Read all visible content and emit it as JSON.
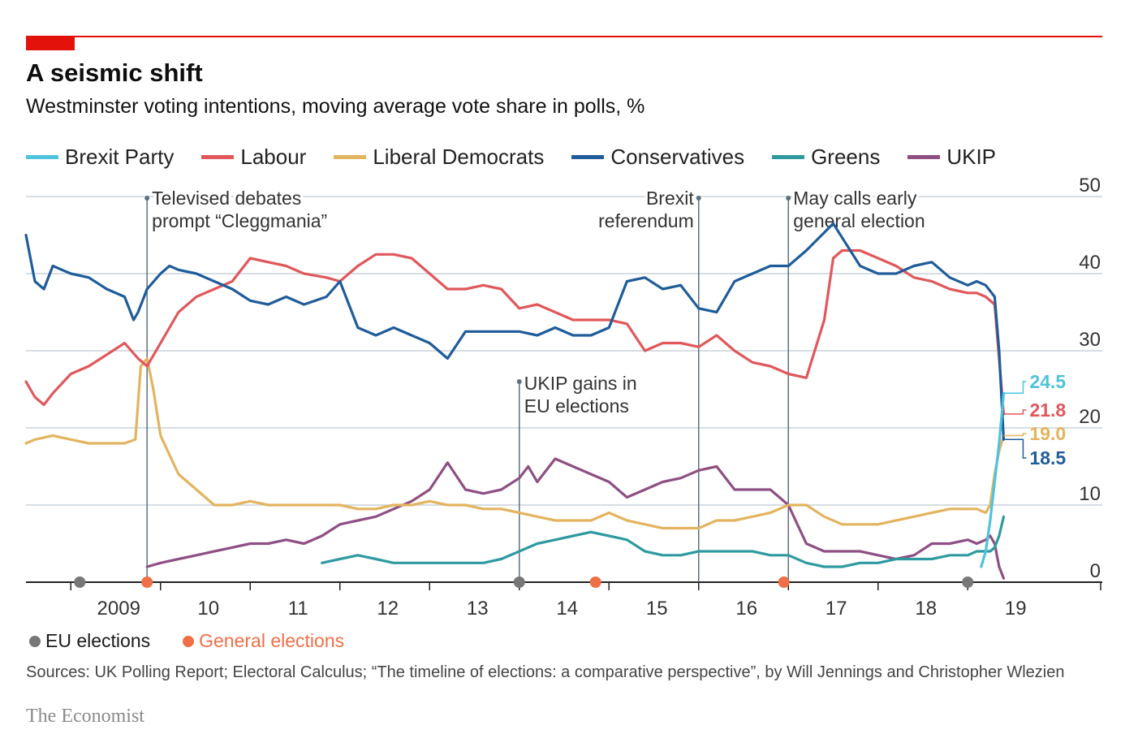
{
  "title": "A seismic shift",
  "subtitle": "Westminster voting intentions, moving average vote share in polls, %",
  "legend": [
    {
      "name": "Brexit Party",
      "color": "#4dc3dc"
    },
    {
      "name": "Labour",
      "color": "#e0585b"
    },
    {
      "name": "Liberal Democrats",
      "color": "#e3b45f"
    },
    {
      "name": "Conservatives",
      "color": "#1f5c99"
    },
    {
      "name": "Greens",
      "color": "#2e9aa0"
    },
    {
      "name": "UKIP",
      "color": "#8e4f82"
    }
  ],
  "markers": {
    "eu_label": "EU elections",
    "eu_color": "#777777",
    "ge_label": "General elections",
    "ge_color": "#ef6f47"
  },
  "sources": "Sources: UK Polling Report; Electoral Calculus; “The timeline of elections: a comparative perspective”, by Will Jennings and Christopher Wlezien",
  "brand": "The Economist",
  "chart_data": {
    "type": "line",
    "x_ticks": [
      2009,
      2010,
      2011,
      2012,
      2013,
      2014,
      2015,
      2016,
      2017,
      2018,
      2019
    ],
    "x_tick_labels": [
      "2009",
      "10",
      "11",
      "12",
      "13",
      "14",
      "15",
      "16",
      "17",
      "18",
      "19"
    ],
    "xlim": [
      2008.5,
      2020.5
    ],
    "ylim": [
      0,
      50
    ],
    "y_ticks": [
      0,
      10,
      20,
      30,
      40,
      50
    ],
    "grid": true,
    "series": [
      {
        "name": "Conservatives",
        "color": "#1f5c99",
        "x": [
          2008.5,
          2008.55,
          2008.6,
          2008.7,
          2008.8,
          2008.9,
          2009.0,
          2009.2,
          2009.4,
          2009.6,
          2009.7,
          2009.75,
          2009.85,
          2010.0,
          2010.1,
          2010.2,
          2010.4,
          2010.6,
          2010.8,
          2011.0,
          2011.2,
          2011.4,
          2011.6,
          2011.85,
          2012.0,
          2012.2,
          2012.4,
          2012.6,
          2012.8,
          2013.0,
          2013.2,
          2013.4,
          2013.6,
          2013.8,
          2014.0,
          2014.2,
          2014.4,
          2014.6,
          2014.8,
          2015.0,
          2015.2,
          2015.4,
          2015.6,
          2015.8,
          2016.0,
          2016.2,
          2016.4,
          2016.6,
          2016.8,
          2017.0,
          2017.2,
          2017.5,
          2017.8,
          2018.0,
          2018.2,
          2018.4,
          2018.6,
          2018.8,
          2019.0,
          2019.1,
          2019.2,
          2019.3,
          2019.35,
          2019.4
        ],
        "y": [
          45,
          42,
          39,
          38,
          41,
          40.5,
          40,
          39.5,
          38,
          37,
          34,
          35,
          38,
          40,
          41,
          40.5,
          40,
          39,
          38,
          36.5,
          36,
          37,
          36,
          37,
          39,
          33,
          32,
          33,
          32,
          31,
          29,
          32.5,
          32.5,
          32.5,
          32.5,
          32,
          33,
          32,
          32,
          33,
          39,
          39.5,
          38,
          38.5,
          35.5,
          35,
          39,
          40,
          41,
          41,
          43,
          46.5,
          41,
          40,
          40,
          41,
          41.5,
          39.5,
          38.5,
          39,
          38.5,
          37,
          30,
          18.5
        ]
      },
      {
        "name": "Labour",
        "color": "#e0585b",
        "x": [
          2008.5,
          2008.6,
          2008.7,
          2008.8,
          2009.0,
          2009.2,
          2009.4,
          2009.6,
          2009.75,
          2009.85,
          2010.0,
          2010.2,
          2010.4,
          2010.6,
          2010.8,
          2011.0,
          2011.2,
          2011.4,
          2011.6,
          2011.85,
          2012.0,
          2012.2,
          2012.4,
          2012.6,
          2012.8,
          2013.0,
          2013.2,
          2013.4,
          2013.6,
          2013.8,
          2014.0,
          2014.2,
          2014.4,
          2014.6,
          2014.8,
          2015.0,
          2015.2,
          2015.4,
          2015.6,
          2015.8,
          2016.0,
          2016.2,
          2016.4,
          2016.6,
          2016.8,
          2017.0,
          2017.2,
          2017.4,
          2017.5,
          2017.6,
          2017.8,
          2018.0,
          2018.2,
          2018.4,
          2018.6,
          2018.8,
          2019.0,
          2019.1,
          2019.2,
          2019.3,
          2019.35,
          2019.4
        ],
        "y": [
          26,
          24,
          23,
          24.5,
          27,
          28,
          29.5,
          31,
          29,
          28,
          31,
          35,
          37,
          38,
          39,
          42,
          41.5,
          41,
          40,
          39.5,
          39,
          41,
          42.5,
          42.5,
          42,
          40,
          38,
          38,
          38.5,
          38,
          35.5,
          36,
          35,
          34,
          34,
          34,
          33.5,
          30,
          31,
          31,
          30.5,
          32,
          30,
          28.5,
          28,
          27,
          26.5,
          34,
          42,
          43,
          43,
          42,
          41,
          39.5,
          39,
          38,
          37.5,
          37.5,
          37,
          36,
          29,
          21.8
        ]
      },
      {
        "name": "Liberal Democrats",
        "color": "#e3b45f",
        "x": [
          2008.5,
          2008.6,
          2008.8,
          2009.0,
          2009.2,
          2009.4,
          2009.6,
          2009.72,
          2009.78,
          2009.85,
          2009.92,
          2010.0,
          2010.2,
          2010.4,
          2010.5,
          2010.6,
          2010.8,
          2011.0,
          2011.2,
          2011.5,
          2011.8,
          2012.0,
          2012.2,
          2012.4,
          2012.6,
          2012.8,
          2013.0,
          2013.2,
          2013.4,
          2013.6,
          2013.8,
          2014.0,
          2014.2,
          2014.4,
          2014.6,
          2014.8,
          2015.0,
          2015.2,
          2015.4,
          2015.6,
          2015.8,
          2016.0,
          2016.2,
          2016.4,
          2016.6,
          2016.8,
          2017.0,
          2017.2,
          2017.4,
          2017.6,
          2017.8,
          2018.0,
          2018.2,
          2018.4,
          2018.6,
          2018.8,
          2019.0,
          2019.1,
          2019.2,
          2019.25,
          2019.3,
          2019.35,
          2019.4
        ],
        "y": [
          18,
          18.5,
          19,
          18.5,
          18,
          18,
          18,
          18.5,
          28,
          29,
          25,
          19,
          14,
          12,
          11,
          10,
          10,
          10.5,
          10,
          10,
          10,
          10,
          9.5,
          9.5,
          10,
          10,
          10.5,
          10,
          10,
          9.5,
          9.5,
          9,
          8.5,
          8,
          8,
          8,
          9,
          8,
          7.5,
          7,
          7,
          7,
          8,
          8,
          8.5,
          9,
          10,
          10,
          8.5,
          7.5,
          7.5,
          7.5,
          8,
          8.5,
          9,
          9.5,
          9.5,
          9.5,
          9,
          10,
          14,
          17,
          19.0
        ]
      },
      {
        "name": "Greens",
        "color": "#2e9aa0",
        "x": [
          2011.8,
          2012.0,
          2012.2,
          2012.4,
          2012.6,
          2012.8,
          2013.0,
          2013.2,
          2013.4,
          2013.6,
          2013.8,
          2014.0,
          2014.2,
          2014.4,
          2014.6,
          2014.8,
          2015.0,
          2015.2,
          2015.4,
          2015.6,
          2015.8,
          2016.0,
          2016.2,
          2016.4,
          2016.6,
          2016.8,
          2017.0,
          2017.2,
          2017.4,
          2017.6,
          2017.8,
          2018.0,
          2018.2,
          2018.4,
          2018.6,
          2018.8,
          2019.0,
          2019.1,
          2019.2,
          2019.25,
          2019.3,
          2019.35,
          2019.4
        ],
        "y": [
          2.5,
          3,
          3.5,
          3,
          2.5,
          2.5,
          2.5,
          2.5,
          2.5,
          2.5,
          3,
          4,
          5,
          5.5,
          6,
          6.5,
          6,
          5.5,
          4,
          3.5,
          3.5,
          4,
          4,
          4,
          4,
          3.5,
          3.5,
          2.5,
          2,
          2,
          2.5,
          2.5,
          3,
          3,
          3,
          3.5,
          3.5,
          4,
          4,
          4,
          4.5,
          6,
          8.5
        ]
      },
      {
        "name": "UKIP",
        "color": "#8e4f82",
        "x": [
          2009.85,
          2010.0,
          2010.2,
          2010.4,
          2010.6,
          2010.8,
          2011.0,
          2011.2,
          2011.4,
          2011.6,
          2011.8,
          2012.0,
          2012.2,
          2012.4,
          2012.6,
          2012.8,
          2013.0,
          2013.2,
          2013.4,
          2013.6,
          2013.8,
          2014.0,
          2014.1,
          2014.2,
          2014.4,
          2014.6,
          2014.8,
          2015.0,
          2015.2,
          2015.4,
          2015.6,
          2015.8,
          2016.0,
          2016.2,
          2016.4,
          2016.6,
          2016.8,
          2017.0,
          2017.2,
          2017.4,
          2017.6,
          2017.8,
          2018.0,
          2018.2,
          2018.4,
          2018.6,
          2018.8,
          2019.0,
          2019.1,
          2019.2,
          2019.25,
          2019.3,
          2019.35,
          2019.4
        ],
        "y": [
          2,
          2.5,
          3,
          3.5,
          4,
          4.5,
          5,
          5,
          5.5,
          5,
          6,
          7.5,
          8,
          8.5,
          9.5,
          10.5,
          12,
          15.5,
          12,
          11.5,
          12,
          13.5,
          15,
          13,
          16,
          15,
          14,
          13,
          11,
          12,
          13,
          13.5,
          14.5,
          15,
          12,
          12,
          12,
          10,
          5,
          4,
          4,
          4,
          3.5,
          3,
          3.5,
          5,
          5,
          5.5,
          5,
          5.5,
          6,
          5,
          2,
          0.5
        ]
      },
      {
        "name": "Brexit Party",
        "color": "#4dc3dc",
        "x": [
          2019.15,
          2019.2,
          2019.25,
          2019.3,
          2019.35,
          2019.4
        ],
        "y": [
          2,
          4,
          8,
          13,
          18,
          24.5
        ]
      }
    ],
    "end_labels": [
      {
        "value": "24.5",
        "color": "#4dc3dc"
      },
      {
        "value": "21.8",
        "color": "#e0585b"
      },
      {
        "value": "19.0",
        "color": "#e3b45f"
      },
      {
        "value": "18.5",
        "color": "#1f5c99"
      }
    ],
    "annotations": [
      {
        "x": 2009.85,
        "lines": [
          "Televised debates",
          "prompt “Cleggmania”"
        ],
        "align": "start"
      },
      {
        "x": 2016.0,
        "lines": [
          "Brexit",
          "referendum"
        ],
        "align": "end"
      },
      {
        "x": 2017.0,
        "lines": [
          "May calls early",
          "general election"
        ],
        "align": "start"
      },
      {
        "x": 2014.0,
        "lines": [
          "UKIP gains in",
          "EU elections"
        ],
        "align": "start",
        "y": 26
      }
    ],
    "eu_elections": [
      2009.1,
      2014.0,
      2019.0
    ],
    "general_elections": [
      2009.85,
      2014.85,
      2016.95
    ]
  }
}
